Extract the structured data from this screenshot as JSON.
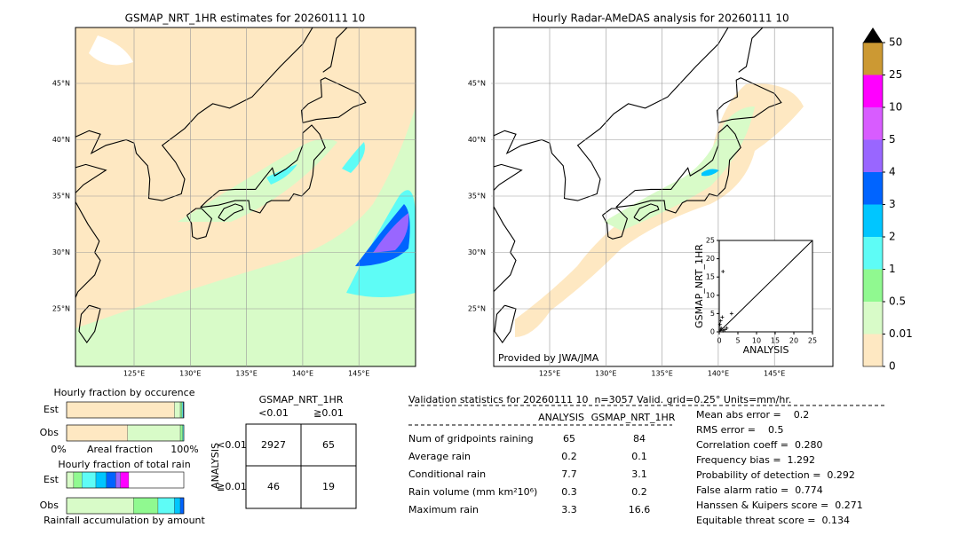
{
  "left_map": {
    "title": "GSMAP_NRT_1HR estimates for 20260111 10",
    "lat_labels": [
      "45°N",
      "40°N",
      "35°N",
      "30°N",
      "25°N"
    ],
    "lon_labels": [
      "125°E",
      "130°E",
      "135°E",
      "140°E",
      "145°E"
    ]
  },
  "right_map": {
    "title": "Hourly Radar-AMeDAS analysis for 20260111 10",
    "lat_labels": [
      "45°N",
      "40°N",
      "35°N",
      "30°N",
      "25°N"
    ],
    "lon_labels": [
      "125°E",
      "130°E",
      "135°E",
      "140°E",
      "145°E"
    ],
    "credit": "Provided by JWA/JMA",
    "inset": {
      "type": "scatter",
      "xlabel": "ANALYSIS",
      "ylabel": "GSMAP_NRT_1HR",
      "xlim": [
        0,
        25
      ],
      "ylim": [
        0,
        25
      ],
      "xticks": [
        0,
        5,
        10,
        15,
        20,
        25
      ],
      "yticks": [
        0,
        5,
        10,
        15,
        20,
        25
      ],
      "x": [
        0.3,
        0.5,
        1,
        0.2,
        1,
        3.3,
        0.8,
        2,
        0.4,
        1.5
      ],
      "y": [
        0.5,
        1,
        0.3,
        2,
        16.5,
        5,
        4,
        1,
        3,
        0.6
      ]
    }
  },
  "colorbar": {
    "labels": [
      "0",
      "0.01",
      "0.5",
      "1",
      "2",
      "3",
      "4",
      "5",
      "10",
      "25",
      "50"
    ],
    "colors": [
      "#fee8c2",
      "#d8fbc8",
      "#90f990",
      "#5efcf6",
      "#00c6ff",
      "#0064ff",
      "#9966ff",
      "#d85cff",
      "#ff00ff",
      "#cc9933"
    ],
    "extend_color": "#000000"
  },
  "occurrence": {
    "title": "Hourly fraction by occurence",
    "rows": [
      "Est",
      "Obs"
    ],
    "axis_left": "0%",
    "axis_label": "Areal fraction",
    "axis_right": "100%",
    "series": [
      {
        "values": [
          92,
          5,
          1.5,
          1,
          0.5
        ],
        "colors": [
          "#fee8c2",
          "#d8fbc8",
          "#90f990",
          "#5efcf6",
          "#0064ff"
        ]
      },
      {
        "values": [
          52,
          45,
          2,
          1
        ],
        "colors": [
          "#fee8c2",
          "#d8fbc8",
          "#90f990",
          "#5efcf6"
        ]
      }
    ]
  },
  "amount": {
    "title": "Hourly fraction of total rain",
    "rows": [
      "Est",
      "Obs"
    ],
    "xlabel": "Rainfall accumulation by amount",
    "series": [
      {
        "values": [
          6,
          7,
          12,
          9,
          8,
          4,
          7
        ],
        "colors": [
          "#d8fbc8",
          "#90f990",
          "#5efcf6",
          "#00c6ff",
          "#0064ff",
          "#9966ff",
          "#ff00ff"
        ]
      },
      {
        "values": [
          57,
          21,
          14,
          5,
          3
        ],
        "colors": [
          "#d8fbc8",
          "#90f990",
          "#5efcf6",
          "#00c6ff",
          "#0064ff"
        ]
      }
    ]
  },
  "contingency": {
    "title": "GSMAP_NRT_1HR",
    "columns": [
      "<0.01",
      "≧0.01"
    ],
    "ylabel": "ANALYSIS",
    "rows": [
      "<0.01",
      "≧0.01"
    ],
    "cells": [
      [
        "2927",
        "65"
      ],
      [
        "46",
        "19"
      ]
    ]
  },
  "validation": {
    "header": "Validation statistics for 20260111 10  n=3057 Valid. grid=0.25° Units=mm/hr.",
    "columns": [
      "ANALYSIS",
      "GSMAP_NRT_1HR"
    ],
    "rows": [
      [
        "Num of gridpoints raining",
        "65",
        "84"
      ],
      [
        "Average rain",
        "0.2",
        "0.1"
      ],
      [
        "Conditional rain",
        "7.7",
        "3.1"
      ],
      [
        "Rain volume (mm km²10⁶)",
        "0.3",
        "0.2"
      ],
      [
        "Maximum rain",
        "3.3",
        "16.6"
      ]
    ],
    "scores": [
      "Mean abs error =    0.2",
      "RMS error =    0.5",
      "Correlation coeff =  0.280",
      "Frequency bias =  1.292",
      "Probability of detection =  0.292",
      "False alarm ratio =  0.774",
      "Hanssen & Kuipers score =  0.271",
      "Equitable threat score =  0.134"
    ]
  }
}
